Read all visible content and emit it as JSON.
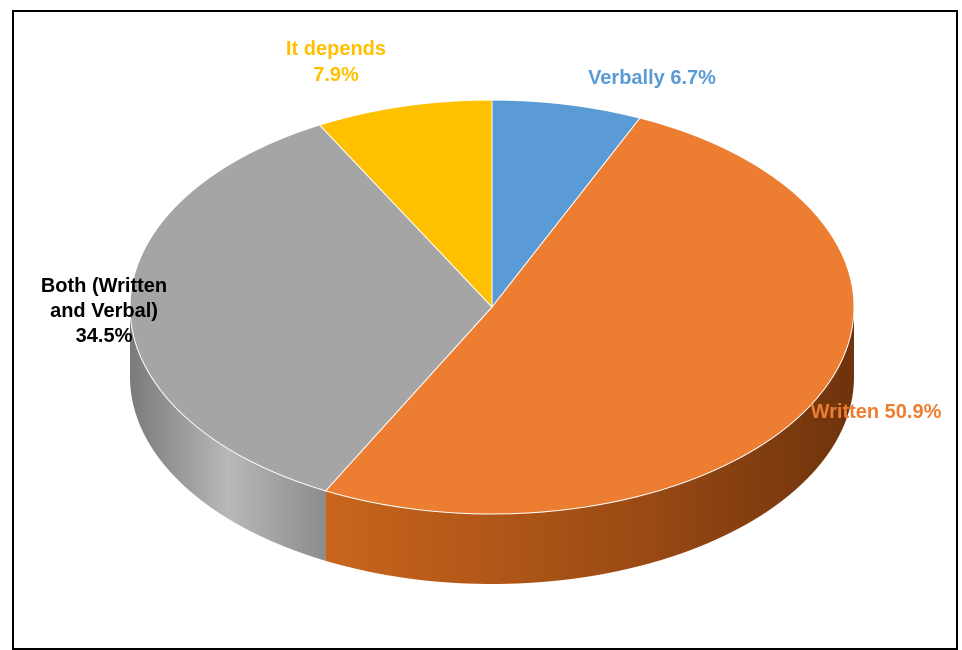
{
  "chart_data": {
    "type": "pie",
    "style": "3d",
    "title": "",
    "slices": [
      {
        "label": "Verbally",
        "value": 6.7,
        "display": "Verbally 6.7%",
        "color": "#5B9BD5"
      },
      {
        "label": "Written",
        "value": 50.9,
        "display": "Written 50.9%",
        "color": "#ED7D31"
      },
      {
        "label": "Both (Written and Verbal)",
        "value": 34.5,
        "display_lines": [
          "Both (Written",
          "and Verbal)",
          "34.5%"
        ],
        "color": "#A5A5A5"
      },
      {
        "label": "It depends",
        "value": 7.9,
        "display_lines": [
          "It depends",
          "7.9%"
        ],
        "color": "#FFC000"
      }
    ],
    "label_colors": {
      "Verbally": "#5B9BD5",
      "Written": "#ED7D31",
      "Both (Written and Verbal)": "#000000",
      "It depends": "#FFC000"
    }
  }
}
